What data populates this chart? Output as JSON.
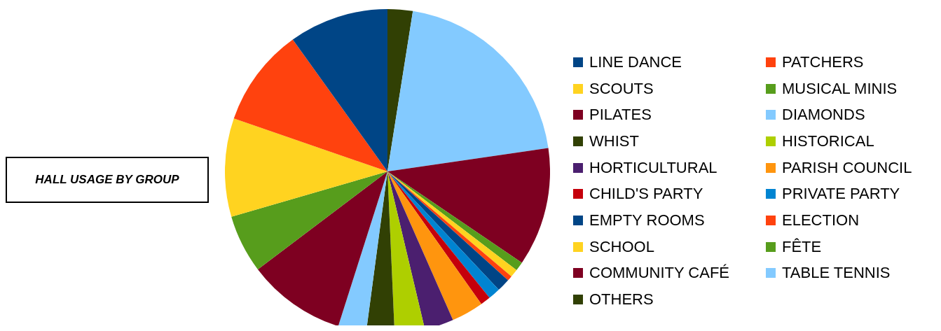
{
  "chart_data": {
    "type": "pie",
    "title": "HALL USAGE BY GROUP",
    "legend": "right",
    "categories": [
      "LINE DANCE",
      "PATCHERS",
      "SCOUTS",
      "MUSICAL MINIS",
      "PILATES",
      "DIAMONDS",
      "WHIST",
      "HISTORICAL",
      "HORTICULTURAL",
      "PARISH COUNCIL",
      "CHILD'S PARTY",
      "PRIVATE PARTY",
      "EMPTY ROOMS",
      "ELECTION",
      "SCHOOL",
      "FÊTE",
      "COMMUNITY CAFÉ",
      "TABLE TENNIS",
      "OTHERS"
    ],
    "values": [
      9.9,
      9.8,
      9.8,
      5.8,
      9.8,
      2.8,
      2.8,
      3.0,
      2.9,
      3.2,
      1.0,
      1.2,
      1.3,
      0.5,
      0.8,
      0.9,
      11.8,
      20.2,
      2.5
    ],
    "colors": [
      "#004586",
      "#ff420e",
      "#ffd320",
      "#579d1c",
      "#7e0021",
      "#83caff",
      "#314004",
      "#aecf00",
      "#4b1f6f",
      "#ff950e",
      "#c5000b",
      "#0084d1",
      "#004586",
      "#ff420e",
      "#ffd320",
      "#579d1c",
      "#7e0021",
      "#83caff",
      "#314004"
    ]
  }
}
